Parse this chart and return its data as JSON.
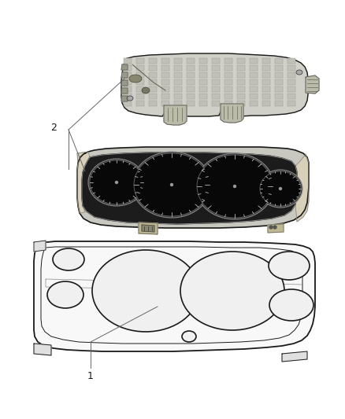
{
  "background_color": "#ffffff",
  "line_color": "#1a1a1a",
  "label_1": "1",
  "label_2": "2",
  "fig_width": 4.38,
  "fig_height": 5.33,
  "dpi": 100,
  "bezel_color": "#f8f8f8",
  "bezel_inner": "#e8e8e8",
  "cluster_dark": "#1a1a1a",
  "cluster_rim": "#888888",
  "board_color": "#d0d0c8",
  "board_grid": "#aaaaaa"
}
